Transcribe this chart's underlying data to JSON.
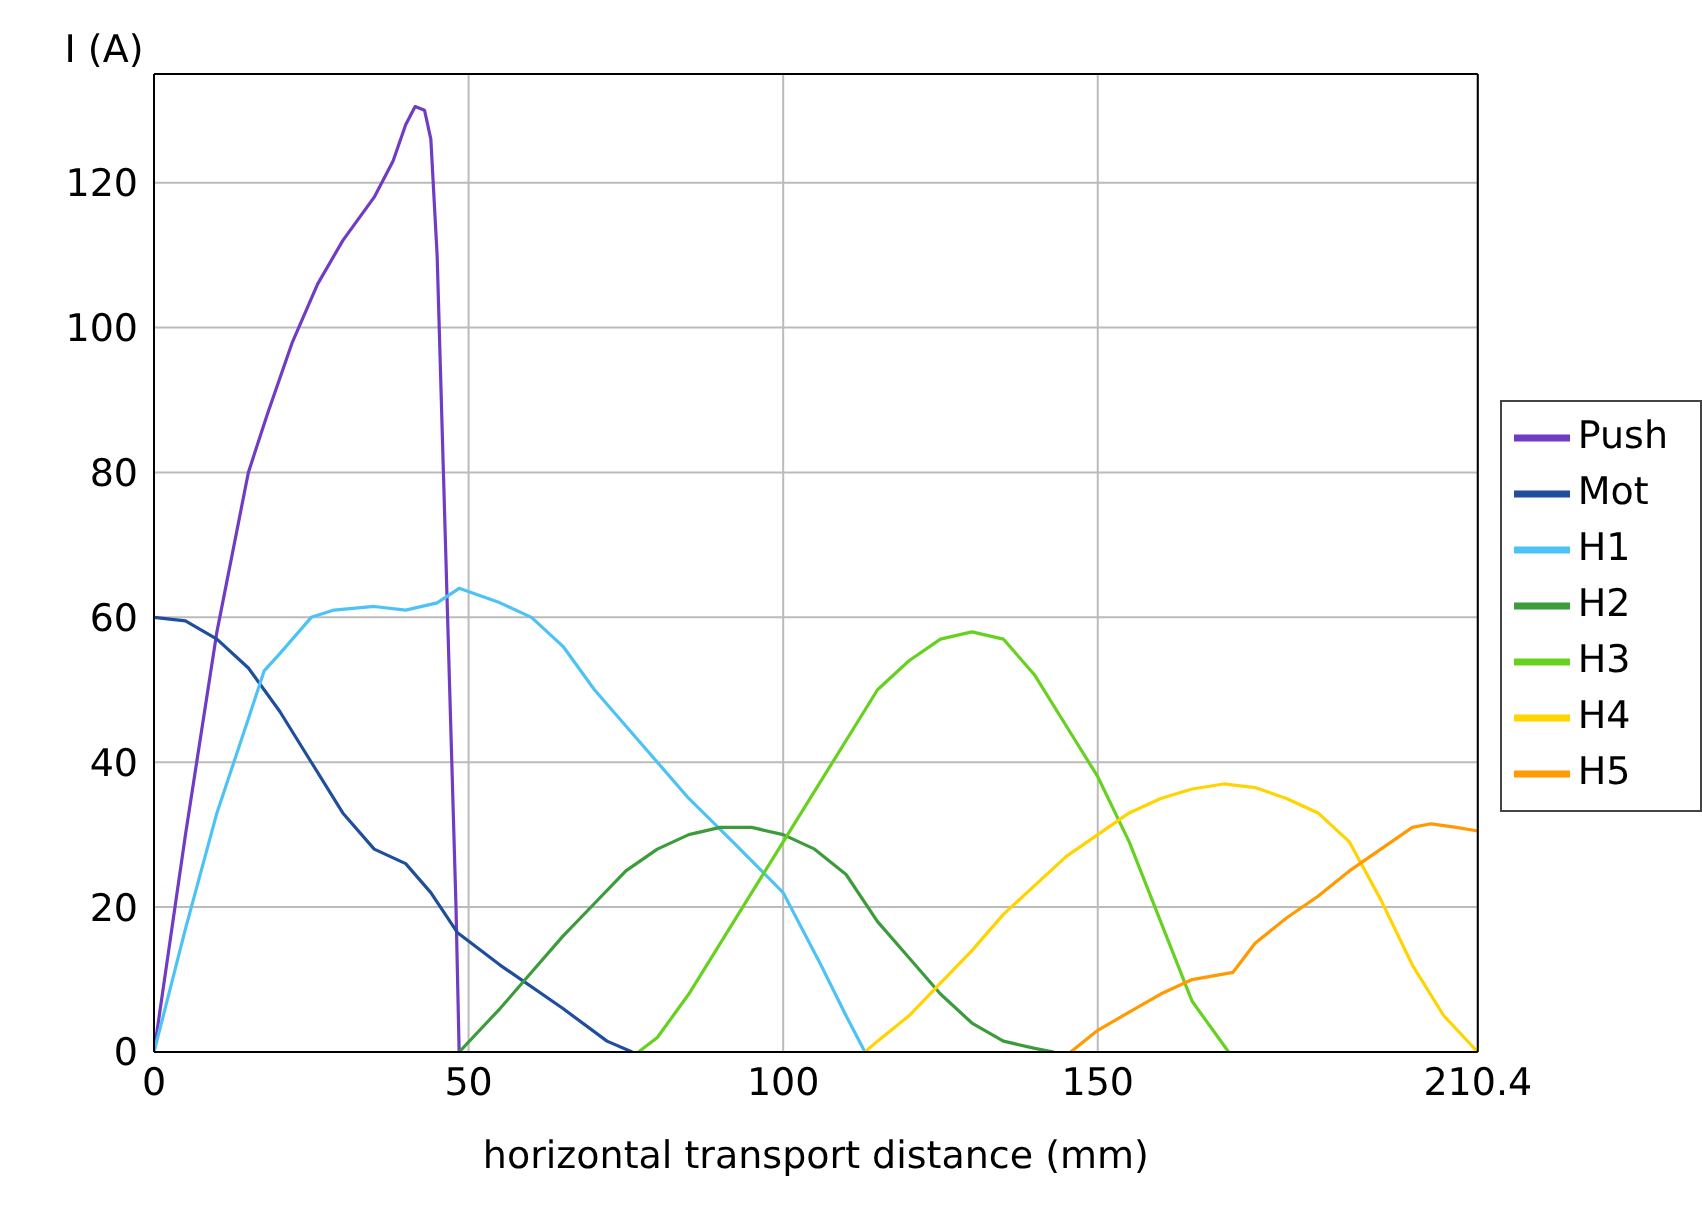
{
  "chart_data": {
    "type": "line",
    "xlabel": "horizontal transport distance (mm)",
    "ylabel": "I (A)",
    "xlim": [
      0,
      210.4
    ],
    "xticks": [
      0,
      50,
      100,
      150,
      210.4
    ],
    "ylim": [
      0,
      135
    ],
    "yticks": [
      0,
      20,
      40,
      60,
      80,
      100,
      120
    ],
    "grid": true,
    "legend": "right",
    "marker": "none",
    "line_style": "solid",
    "series": [
      {
        "name": "Push",
        "color": "#6f3cc3",
        "x": [
          0,
          5,
          10,
          15,
          18,
          22,
          26,
          30,
          35,
          38,
          40,
          41.5,
          43,
          44,
          45,
          46,
          47,
          48,
          48.5
        ],
        "values": [
          0,
          30,
          58,
          80,
          88,
          98,
          106,
          112,
          118,
          123,
          128,
          130.5,
          130,
          126,
          110,
          80,
          50,
          20,
          0
        ]
      },
      {
        "name": "Mot",
        "color": "#1f4e9c",
        "x": [
          0,
          5,
          10,
          15,
          20,
          25,
          30,
          35,
          40,
          44,
          48.2,
          55,
          65,
          72,
          76
        ],
        "values": [
          60,
          59.5,
          57,
          53,
          47,
          40,
          33,
          28,
          26,
          22,
          16.5,
          12,
          6,
          1.5,
          0
        ]
      },
      {
        "name": "H1",
        "color": "#4dc3f5",
        "x": [
          0,
          5,
          10,
          15,
          17.5,
          20,
          25,
          28.6,
          35,
          40,
          45,
          48.5,
          55,
          60,
          65,
          70,
          77,
          85,
          92,
          100,
          106,
          110,
          113
        ],
        "values": [
          0,
          17,
          33,
          46,
          52.6,
          55,
          60,
          61,
          61.5,
          61,
          62,
          64,
          62,
          60,
          56,
          50,
          43,
          35,
          29,
          22,
          12,
          5,
          0
        ]
      },
      {
        "name": "H2",
        "color": "#3c9c3c",
        "x": [
          48.5,
          55,
          60,
          65,
          70,
          75,
          80,
          85,
          90,
          95,
          100,
          105,
          110,
          115,
          120,
          125,
          130,
          135,
          140,
          143
        ],
        "values": [
          0,
          6,
          11,
          16,
          20.5,
          25,
          28,
          30,
          31,
          31,
          30,
          28,
          24.5,
          18,
          13,
          8,
          4,
          1.5,
          0.5,
          0
        ]
      },
      {
        "name": "H3",
        "color": "#66d11f",
        "x": [
          77,
          80,
          85,
          90,
          95,
          100,
          105,
          110,
          115,
          120,
          125,
          130,
          135,
          140,
          145,
          150,
          155,
          160,
          165,
          170.8
        ],
        "values": [
          0,
          2,
          8,
          15,
          22,
          29,
          36,
          43,
          50,
          54,
          57,
          58,
          57,
          52,
          45,
          38,
          29,
          18,
          7,
          0
        ]
      },
      {
        "name": "H4",
        "color": "#ffd400",
        "x": [
          113,
          115,
          120,
          125,
          130,
          135,
          140,
          145,
          150,
          155,
          160,
          165,
          170,
          175,
          180,
          185,
          190,
          195,
          200,
          205,
          210.4
        ],
        "values": [
          0,
          1.5,
          5,
          9.5,
          14,
          19,
          23,
          27,
          30,
          33,
          35,
          36.3,
          37,
          36.5,
          35,
          33,
          29,
          21,
          12,
          5,
          0
        ]
      },
      {
        "name": "H5",
        "color": "#ff9a00",
        "x": [
          145.7,
          150,
          155,
          160,
          165,
          171.5,
          175,
          180,
          185,
          190,
          195,
          200,
          203,
          207,
          210.4
        ],
        "values": [
          0,
          3,
          5.5,
          8,
          10,
          11,
          15,
          18.5,
          21.5,
          25,
          28,
          31,
          31.5,
          31,
          30.5
        ]
      }
    ]
  }
}
